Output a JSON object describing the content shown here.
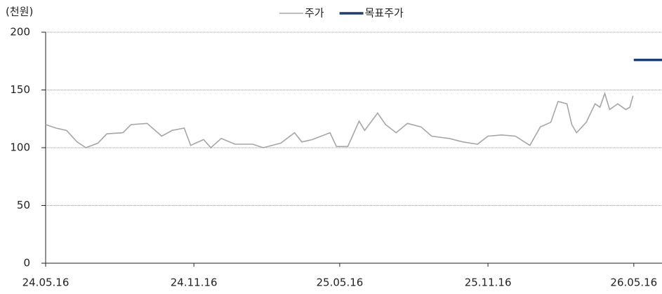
{
  "chart_data": {
    "type": "line",
    "y_axis_label": "(천원)",
    "series": [
      {
        "name": "주가",
        "color": "#a6a6a6",
        "x": [
          "24.05.16",
          "24.05.29",
          "24.06.11",
          "24.06.24",
          "24.07.05",
          "24.07.20",
          "24.07.31",
          "24.08.20",
          "24.08.30",
          "24.09.19",
          "24.10.07",
          "24.10.20",
          "24.11.04",
          "24.11.12",
          "24.11.28",
          "24.12.07",
          "24.12.20",
          "25.01.06",
          "25.01.28",
          "25.02.10",
          "25.03.04",
          "25.03.21",
          "25.03.30",
          "25.04.12",
          "25.05.04",
          "25.05.12",
          "25.05.26",
          "25.06.09",
          "25.06.16",
          "25.07.02",
          "25.07.12",
          "25.07.25",
          "25.08.08",
          "25.08.25",
          "25.09.07",
          "25.09.29",
          "25.10.16",
          "25.11.03",
          "25.11.16",
          "25.12.03",
          "25.12.20",
          "26.01.07",
          "26.01.20",
          "26.02.02",
          "26.02.11",
          "26.02.22",
          "26.02.28",
          "26.03.06",
          "26.03.18",
          "26.03.29",
          "26.04.04",
          "26.04.10",
          "26.04.16",
          "26.04.26",
          "26.05.06",
          "26.05.11",
          "26.05.15"
        ],
        "values": [
          120,
          117,
          115,
          105,
          100,
          104,
          112,
          113,
          120,
          121,
          110,
          115,
          117,
          102,
          107,
          100,
          108,
          103,
          103,
          100,
          104,
          113,
          105,
          107,
          113,
          101,
          101,
          123,
          115,
          130,
          120,
          113,
          121,
          118,
          110,
          108,
          105,
          103,
          110,
          111,
          110,
          102,
          118,
          122,
          140,
          138,
          120,
          113,
          122,
          138,
          135,
          147,
          133,
          138,
          133,
          135,
          145
        ]
      },
      {
        "name": "목표주가",
        "color": "#1f3d6e",
        "x": [
          "26.05.16",
          "26.06.20"
        ],
        "values": [
          176,
          176
        ]
      }
    ],
    "xlim": [
      "24.05.16",
      "26.06.20"
    ],
    "xticks": [
      "24.05.16",
      "24.11.16",
      "25.05.16",
      "25.11.16",
      "26.05.16"
    ],
    "ylim": [
      0,
      200
    ],
    "yticks": [
      0,
      50,
      100,
      150,
      200
    ],
    "grid": true
  }
}
